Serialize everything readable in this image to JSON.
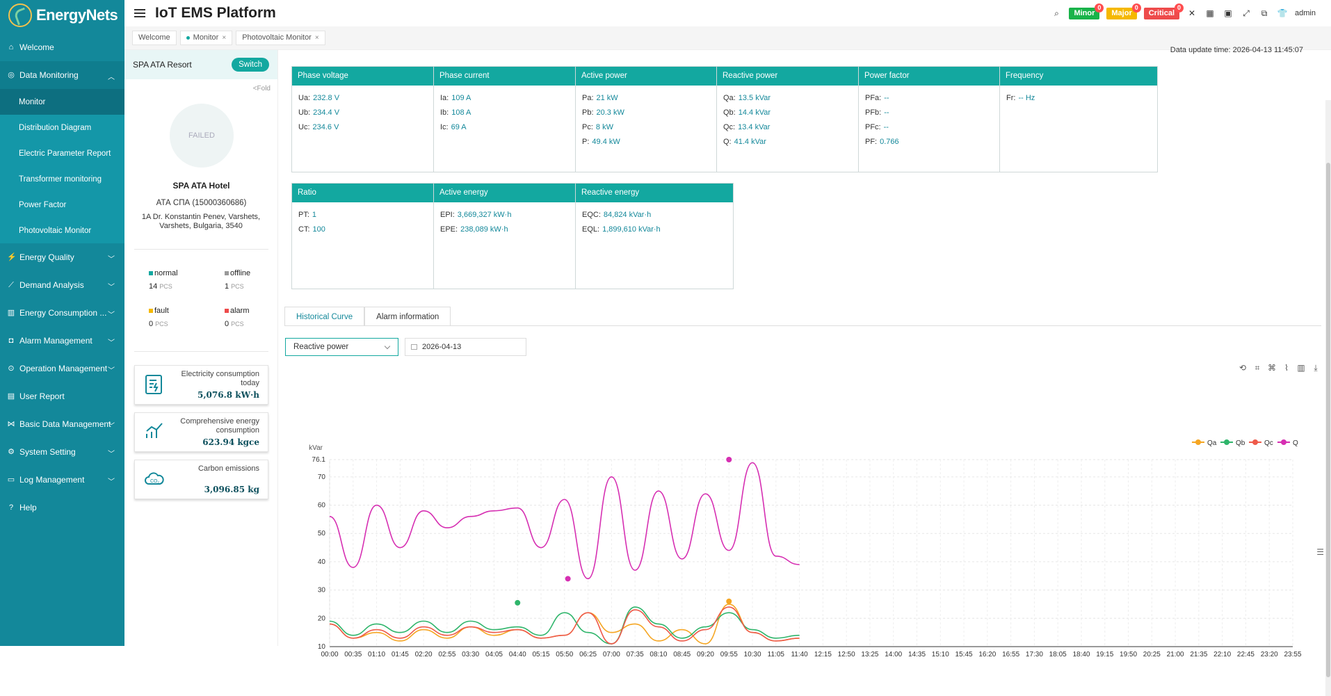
{
  "app": {
    "logo": "EnergyNets",
    "title": "IoT EMS Platform",
    "user": "admin"
  },
  "alarms": [
    {
      "label": "Minor",
      "count": "0",
      "color": "#19b34a"
    },
    {
      "label": "Major",
      "count": "0",
      "color": "#f5b800"
    },
    {
      "label": "Critical",
      "count": "0",
      "color": "#ee4b4b"
    }
  ],
  "sidebar": {
    "items": [
      {
        "label": "Welcome",
        "icon": "home-icon"
      },
      {
        "label": "Data Monitoring",
        "icon": "monitor-icon"
      },
      {
        "label": "Energy Quality",
        "icon": "energy-quality-icon"
      },
      {
        "label": "Demand Analysis",
        "icon": "demand-icon"
      },
      {
        "label": "Energy Consumption ...",
        "icon": "consumption-icon"
      },
      {
        "label": "Alarm Management",
        "icon": "alarm-icon"
      },
      {
        "label": "Operation Management",
        "icon": "operation-icon"
      },
      {
        "label": "User Report",
        "icon": "report-icon"
      },
      {
        "label": "Basic Data Management",
        "icon": "data-icon"
      },
      {
        "label": "System Setting",
        "icon": "setting-icon"
      },
      {
        "label": "Log Management",
        "icon": "log-icon"
      },
      {
        "label": "Help",
        "icon": "help-icon"
      }
    ],
    "sub": [
      "Monitor",
      "Distribution Diagram",
      "Electric Parameter Report",
      "Transformer monitoring",
      "Power Factor",
      "Photovoltaic Monitor"
    ]
  },
  "tabs": [
    "Welcome",
    "Monitor",
    "Photovoltaic Monitor"
  ],
  "site": {
    "name": "SPA ATA Resort",
    "switch": "Switch",
    "fold": "<Fold",
    "image_status": "FAILED",
    "hotel": "SPA ATA Hotel",
    "id": "АТА СПА   (15000360686)",
    "address": "1A Dr. Konstantin Penev, Varshets, Varshets, Bulgaria, 3540"
  },
  "stats": [
    {
      "label": "normal",
      "value": "14",
      "unit": "PCS",
      "color": "#13a8a0"
    },
    {
      "label": "offline",
      "value": "1",
      "unit": "PCS",
      "color": "#999999"
    },
    {
      "label": "fault",
      "value": "0",
      "unit": "PCS",
      "color": "#f5b800"
    },
    {
      "label": "alarm",
      "value": "0",
      "unit": "PCS",
      "color": "#ee4b4b"
    }
  ],
  "cards": [
    {
      "label": "Electricity consumption today",
      "value": "5,076.8 kW·h"
    },
    {
      "label": "Comprehensive energy consumption",
      "value": "623.94 kgce"
    },
    {
      "label": "Carbon emissions",
      "value": "3,096.85 kg"
    }
  ],
  "update_time": "Data update time: 2026-04-13 11:45:07",
  "params": [
    {
      "title": "Phase voltage",
      "rows": [
        [
          "Ua:",
          "232.8 V"
        ],
        [
          "Ub:",
          "234.4 V"
        ],
        [
          "Uc:",
          "234.6 V"
        ]
      ]
    },
    {
      "title": "Phase current",
      "rows": [
        [
          "Ia:",
          "109 A"
        ],
        [
          "Ib:",
          "108 A"
        ],
        [
          "Ic:",
          "69 A"
        ]
      ]
    },
    {
      "title": "Active power",
      "rows": [
        [
          "Pa:",
          "21 kW"
        ],
        [
          "Pb:",
          "20.3 kW"
        ],
        [
          "Pc:",
          "8 kW"
        ],
        [
          "P:",
          "49.4 kW"
        ]
      ]
    },
    {
      "title": "Reactive power",
      "rows": [
        [
          "Qa:",
          "13.5 kVar"
        ],
        [
          "Qb:",
          "14.4 kVar"
        ],
        [
          "Qc:",
          "13.4 kVar"
        ],
        [
          "Q:",
          "41.4 kVar"
        ]
      ]
    },
    {
      "title": "Power factor",
      "rows": [
        [
          "PFa:",
          "--"
        ],
        [
          "PFb:",
          "--"
        ],
        [
          "PFc:",
          "--"
        ],
        [
          "PF:",
          "0.766"
        ]
      ]
    },
    {
      "title": "Frequency",
      "rows": [
        [
          "Fr:",
          "-- Hz"
        ]
      ]
    },
    {
      "title": "Ratio",
      "rows": [
        [
          "PT:",
          "1"
        ],
        [
          "CT:",
          "100"
        ]
      ]
    },
    {
      "title": "Active energy",
      "rows": [
        [
          "EPI:",
          "3,669,327 kW·h"
        ],
        [
          "EPE:",
          "238,089 kW·h"
        ]
      ]
    },
    {
      "title": "Reactive energy",
      "rows": [
        [
          "EQC:",
          "84,824 kVar·h"
        ],
        [
          "EQL:",
          "1,899,610 kVar·h"
        ]
      ]
    }
  ],
  "history": {
    "tabs": [
      "Historical Curve",
      "Alarm information"
    ],
    "select": "Reactive power",
    "date": "2026-04-13"
  },
  "chart_data": {
    "type": "line",
    "ylabel": "kVar",
    "ylim": [
      10,
      76.1
    ],
    "yticks": [
      10,
      20,
      30,
      40,
      50,
      60,
      70,
      76.1
    ],
    "xticks": [
      "00:00",
      "00:35",
      "01:10",
      "01:45",
      "02:20",
      "02:55",
      "03:30",
      "04:05",
      "04:40",
      "05:15",
      "05:50",
      "06:25",
      "07:00",
      "07:35",
      "08:10",
      "08:45",
      "09:20",
      "09:55",
      "10:30",
      "11:05",
      "11:40",
      "12:15",
      "12:50",
      "13:25",
      "14:00",
      "14:35",
      "15:10",
      "15:45",
      "16:20",
      "16:55",
      "17:30",
      "18:05",
      "18:40",
      "19:15",
      "19:50",
      "20:25",
      "21:00",
      "21:35",
      "22:10",
      "22:45",
      "23:20",
      "23:55"
    ],
    "x_minutes": [
      0,
      35,
      70,
      105,
      140,
      175,
      210,
      245,
      280,
      315,
      350,
      385,
      420,
      455,
      490,
      525,
      560,
      595,
      630,
      665,
      700
    ],
    "series": [
      {
        "name": "Qa",
        "color": "#f5a623",
        "values": [
          18,
          13,
          15,
          12,
          16,
          13,
          17,
          14,
          16,
          13,
          14,
          22,
          15,
          18,
          12,
          16,
          11,
          25,
          15,
          12,
          13
        ]
      },
      {
        "name": "Qb",
        "color": "#2fb56b",
        "values": [
          19,
          14,
          18,
          15,
          19,
          15,
          19,
          16,
          17,
          14,
          22,
          15,
          11,
          24,
          18,
          13,
          17,
          22,
          16,
          13,
          14
        ]
      },
      {
        "name": "Qc",
        "color": "#ee5a4a",
        "values": [
          18,
          13,
          16,
          13,
          17,
          14,
          17,
          15,
          16,
          13,
          14,
          22,
          11,
          23,
          17,
          12,
          16,
          24,
          15,
          12,
          13
        ]
      },
      {
        "name": "Q",
        "color": "#d62fb2",
        "values": [
          56,
          38,
          60,
          45,
          58,
          52,
          56,
          58,
          59,
          45,
          62,
          34,
          70,
          37,
          65,
          41,
          64,
          44,
          75,
          42,
          39
        ]
      }
    ],
    "markers": [
      {
        "series": "Q",
        "label": "max",
        "x": 595,
        "y": 76.1
      },
      {
        "series": "Q",
        "label": "min",
        "x": 355,
        "y": 34
      },
      {
        "series": "Qb",
        "label": "max",
        "x": 280,
        "y": 25.5
      },
      {
        "series": "Qa",
        "label": "max",
        "x": 595,
        "y": 26
      }
    ],
    "legend": "top-right"
  }
}
